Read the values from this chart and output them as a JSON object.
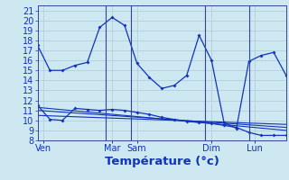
{
  "title": "Température (°c)",
  "background_color": "#cde8f0",
  "grid_color": "#b0c8d8",
  "line_color": "#1133bb",
  "vline_color": "#334499",
  "ylim": [
    8,
    21.5
  ],
  "yticks": [
    8,
    9,
    10,
    11,
    12,
    13,
    14,
    15,
    16,
    17,
    18,
    19,
    20,
    21
  ],
  "xlim": [
    0,
    20
  ],
  "x_tick_positions": [
    0.5,
    6.0,
    8.0,
    14.0,
    17.5
  ],
  "x_tick_labels": [
    "Ven",
    "Mar",
    "Sam",
    "Dim",
    "Lun"
  ],
  "vline_positions": [
    5.5,
    7.5,
    13.5,
    17.0
  ],
  "series1_x": [
    0,
    1,
    2,
    3,
    4,
    5,
    6,
    7,
    8,
    9,
    10,
    11,
    12,
    13,
    14,
    15,
    16,
    17,
    18,
    19,
    20
  ],
  "series1_y": [
    17.5,
    15.0,
    15.0,
    15.5,
    15.8,
    19.3,
    20.3,
    19.5,
    15.7,
    14.3,
    13.2,
    13.5,
    14.5,
    18.5,
    16.0,
    9.8,
    9.2,
    15.9,
    16.5,
    16.8,
    14.5
  ],
  "series2_x": [
    0,
    1,
    2,
    3,
    4,
    5,
    6,
    7,
    8,
    9,
    10,
    11,
    12,
    13,
    14,
    15,
    16,
    17,
    18,
    19,
    20
  ],
  "series2_y": [
    11.5,
    10.1,
    10.0,
    11.2,
    11.1,
    11.0,
    11.1,
    11.0,
    10.8,
    10.6,
    10.3,
    10.1,
    9.9,
    9.8,
    9.7,
    9.5,
    9.3,
    8.8,
    8.5,
    8.5,
    8.5
  ],
  "series3_x": [
    0,
    20
  ],
  "series3_y": [
    11.3,
    9.0
  ],
  "series4_x": [
    0,
    20
  ],
  "series4_y": [
    11.0,
    9.3
  ],
  "series5_x": [
    0,
    20
  ],
  "series5_y": [
    10.5,
    9.6
  ],
  "tick_fontsize": 7.0,
  "xlabel_fontsize": 9.5
}
